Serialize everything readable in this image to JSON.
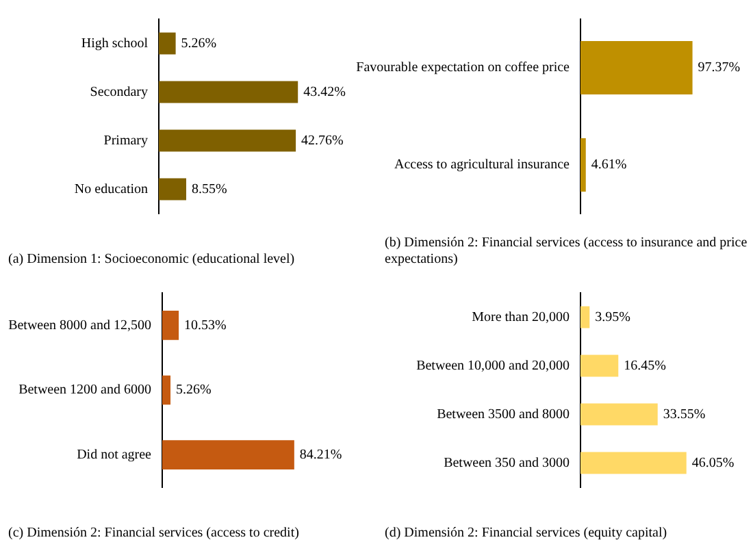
{
  "chart_data": [
    {
      "type": "bar",
      "orientation": "horizontal",
      "title": "(a) Dimension 1: Socioeconomic (educational level)",
      "categories": [
        "High school",
        "Secondary",
        "Primary",
        "No education"
      ],
      "values": [
        5.26,
        43.42,
        42.76,
        8.55
      ],
      "color": "#7f6000",
      "value_labels": [
        "5.26%",
        "43.42%",
        "42.76%",
        "8.55%"
      ]
    },
    {
      "type": "bar",
      "orientation": "horizontal",
      "title": "(b) Dimensión 2: Financial services (access to insurance and price expectations)",
      "categories": [
        "Favourable expectation on coffee price",
        "Access to agricultural insurance"
      ],
      "values": [
        97.37,
        4.61
      ],
      "color": "#bf9000",
      "value_labels": [
        "97.37%",
        "4.61%"
      ]
    },
    {
      "type": "bar",
      "orientation": "horizontal",
      "title": "(c) Dimensión 2: Financial services (access to credit)",
      "categories": [
        "Between 8000 and 12,500",
        "Between 1200 and 6000",
        "Did not agree"
      ],
      "values": [
        10.53,
        5.26,
        84.21
      ],
      "color": "#c55a11",
      "value_labels": [
        "10.53%",
        "5.26%",
        "84.21%"
      ]
    },
    {
      "type": "bar",
      "orientation": "horizontal",
      "title": "(d) Dimensión 2: Financial services (equity capital)",
      "categories": [
        "More than 20,000",
        "Between 10,000 and 20,000",
        "Between 3500 and 8000",
        "Between 350 and 3000"
      ],
      "values": [
        3.95,
        16.45,
        33.55,
        46.05
      ],
      "color": "#ffd966",
      "value_labels": [
        "3.95%",
        "16.45%",
        "33.55%",
        "46.05%"
      ]
    }
  ]
}
